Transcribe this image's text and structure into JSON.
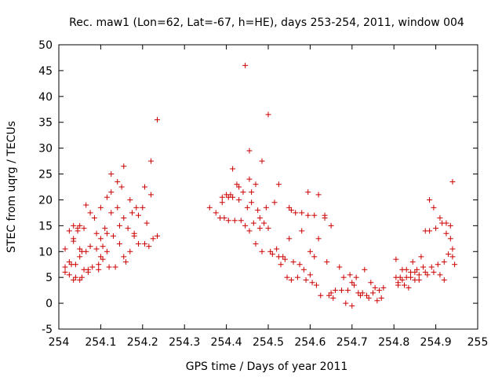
{
  "chart_data": {
    "type": "scatter",
    "title": "Rec. maw1 (Lon=62, Lat=-67, h=HE), days 253-254, 2011, window 004",
    "xlabel": "GPS time / Days of year 2011",
    "ylabel": "STEC from uqrg / TECUs",
    "xlim": [
      254,
      255
    ],
    "ylim": [
      -5,
      50
    ],
    "xticks": [
      "254",
      "254.1",
      "254.2",
      "254.3",
      "254.4",
      "254.5",
      "254.6",
      "254.7",
      "254.8",
      "254.9",
      "255"
    ],
    "yticks": [
      "-5",
      "0",
      "5",
      "10",
      "15",
      "20",
      "25",
      "30",
      "35",
      "40",
      "45",
      "50"
    ],
    "grid": false,
    "legend": "none",
    "marker": "plus",
    "color": "#cc0000",
    "points": [
      [
        254.015,
        10.5
      ],
      [
        254.015,
        7.0
      ],
      [
        254.015,
        6.0
      ],
      [
        254.025,
        14.0
      ],
      [
        254.025,
        8.0
      ],
      [
        254.025,
        5.5
      ],
      [
        254.03,
        7.5
      ],
      [
        254.035,
        15.0
      ],
      [
        254.035,
        12.5
      ],
      [
        254.035,
        12.0
      ],
      [
        254.035,
        4.5
      ],
      [
        254.04,
        7.5
      ],
      [
        254.04,
        5.0
      ],
      [
        254.045,
        14.5
      ],
      [
        254.045,
        14.0
      ],
      [
        254.05,
        15.0
      ],
      [
        254.05,
        10.5
      ],
      [
        254.05,
        9.0
      ],
      [
        254.05,
        4.5
      ],
      [
        254.055,
        10.0
      ],
      [
        254.055,
        5.0
      ],
      [
        254.06,
        14.5
      ],
      [
        254.06,
        6.5
      ],
      [
        254.065,
        19.0
      ],
      [
        254.065,
        10.0
      ],
      [
        254.07,
        6.5
      ],
      [
        254.07,
        6.0
      ],
      [
        254.075,
        17.5
      ],
      [
        254.075,
        11.0
      ],
      [
        254.08,
        7.0
      ],
      [
        254.085,
        16.5
      ],
      [
        254.09,
        13.5
      ],
      [
        254.09,
        10.5
      ],
      [
        254.095,
        7.5
      ],
      [
        254.095,
        6.5
      ],
      [
        254.1,
        18.5
      ],
      [
        254.1,
        12.5
      ],
      [
        254.1,
        9.0
      ],
      [
        254.105,
        11.0
      ],
      [
        254.105,
        8.5
      ],
      [
        254.11,
        14.5
      ],
      [
        254.115,
        20.5
      ],
      [
        254.115,
        13.5
      ],
      [
        254.115,
        10.0
      ],
      [
        254.12,
        7.0
      ],
      [
        254.125,
        25.0
      ],
      [
        254.125,
        21.5
      ],
      [
        254.125,
        17.5
      ],
      [
        254.13,
        13.0
      ],
      [
        254.135,
        7.0
      ],
      [
        254.14,
        23.5
      ],
      [
        254.14,
        18.5
      ],
      [
        254.145,
        15.0
      ],
      [
        254.145,
        11.5
      ],
      [
        254.15,
        22.5
      ],
      [
        254.155,
        26.5
      ],
      [
        254.155,
        16.5
      ],
      [
        254.155,
        9.0
      ],
      [
        254.16,
        8.0
      ],
      [
        254.165,
        14.5
      ],
      [
        254.17,
        20.0
      ],
      [
        254.17,
        10.0
      ],
      [
        254.175,
        17.5
      ],
      [
        254.18,
        13.5
      ],
      [
        254.18,
        13.0
      ],
      [
        254.185,
        18.5
      ],
      [
        254.19,
        17.0
      ],
      [
        254.19,
        11.5
      ],
      [
        254.2,
        18.5
      ],
      [
        254.205,
        22.5
      ],
      [
        254.205,
        11.5
      ],
      [
        254.21,
        15.5
      ],
      [
        254.215,
        11.0
      ],
      [
        254.22,
        27.5
      ],
      [
        254.22,
        21.0
      ],
      [
        254.225,
        12.5
      ],
      [
        254.235,
        35.5
      ],
      [
        254.235,
        13.0
      ],
      [
        254.36,
        18.5
      ],
      [
        254.375,
        17.5
      ],
      [
        254.385,
        16.5
      ],
      [
        254.39,
        20.5
      ],
      [
        254.39,
        19.5
      ],
      [
        254.395,
        16.5
      ],
      [
        254.4,
        21.0
      ],
      [
        254.405,
        20.5
      ],
      [
        254.405,
        16.0
      ],
      [
        254.41,
        21.0
      ],
      [
        254.415,
        26.0
      ],
      [
        254.415,
        20.5
      ],
      [
        254.42,
        16.0
      ],
      [
        254.425,
        23.0
      ],
      [
        254.43,
        22.5
      ],
      [
        254.43,
        20.0
      ],
      [
        254.435,
        16.0
      ],
      [
        254.44,
        21.5
      ],
      [
        254.445,
        46.0
      ],
      [
        254.445,
        15.0
      ],
      [
        254.45,
        18.5
      ],
      [
        254.455,
        29.5
      ],
      [
        254.455,
        24.0
      ],
      [
        254.455,
        14.0
      ],
      [
        254.46,
        21.5
      ],
      [
        254.46,
        19.5
      ],
      [
        254.465,
        15.5
      ],
      [
        254.47,
        23.0
      ],
      [
        254.47,
        11.5
      ],
      [
        254.475,
        18.0
      ],
      [
        254.48,
        16.5
      ],
      [
        254.48,
        14.5
      ],
      [
        254.485,
        27.5
      ],
      [
        254.485,
        10.0
      ],
      [
        254.49,
        15.5
      ],
      [
        254.495,
        18.5
      ],
      [
        254.5,
        36.5
      ],
      [
        254.5,
        14.5
      ],
      [
        254.505,
        10.0
      ],
      [
        254.51,
        9.5
      ],
      [
        254.515,
        19.5
      ],
      [
        254.52,
        10.5
      ],
      [
        254.525,
        23.0
      ],
      [
        254.525,
        9.0
      ],
      [
        254.53,
        7.5
      ],
      [
        254.535,
        9.0
      ],
      [
        254.54,
        8.5
      ],
      [
        254.545,
        5.0
      ],
      [
        254.55,
        18.5
      ],
      [
        254.55,
        12.5
      ],
      [
        254.555,
        18.0
      ],
      [
        254.555,
        4.5
      ],
      [
        254.56,
        8.0
      ],
      [
        254.565,
        17.5
      ],
      [
        254.57,
        5.0
      ],
      [
        254.575,
        7.5
      ],
      [
        254.58,
        17.5
      ],
      [
        254.58,
        14.0
      ],
      [
        254.585,
        6.5
      ],
      [
        254.59,
        4.5
      ],
      [
        254.595,
        21.5
      ],
      [
        254.595,
        17.0
      ],
      [
        254.6,
        10.0
      ],
      [
        254.6,
        5.5
      ],
      [
        254.605,
        4.0
      ],
      [
        254.61,
        17.0
      ],
      [
        254.61,
        9.0
      ],
      [
        254.615,
        3.5
      ],
      [
        254.62,
        21.0
      ],
      [
        254.62,
        12.5
      ],
      [
        254.625,
        1.5
      ],
      [
        254.635,
        17.0
      ],
      [
        254.635,
        16.5
      ],
      [
        254.64,
        8.0
      ],
      [
        254.645,
        1.5
      ],
      [
        254.65,
        15.0
      ],
      [
        254.65,
        2.0
      ],
      [
        254.655,
        1.0
      ],
      [
        254.66,
        2.5
      ],
      [
        254.67,
        7.0
      ],
      [
        254.675,
        2.5
      ],
      [
        254.68,
        5.0
      ],
      [
        254.685,
        0.0
      ],
      [
        254.69,
        2.5
      ],
      [
        254.695,
        5.5
      ],
      [
        254.7,
        4.0
      ],
      [
        254.7,
        -0.5
      ],
      [
        254.705,
        3.5
      ],
      [
        254.71,
        5.0
      ],
      [
        254.715,
        2.0
      ],
      [
        254.72,
        1.5
      ],
      [
        254.725,
        2.0
      ],
      [
        254.73,
        6.5
      ],
      [
        254.735,
        1.5
      ],
      [
        254.74,
        1.0
      ],
      [
        254.745,
        4.0
      ],
      [
        254.75,
        2.0
      ],
      [
        254.755,
        3.0
      ],
      [
        254.76,
        0.5
      ],
      [
        254.765,
        2.5
      ],
      [
        254.77,
        1.0
      ],
      [
        254.775,
        3.0
      ],
      [
        254.805,
        8.5
      ],
      [
        254.805,
        5.0
      ],
      [
        254.81,
        4.0
      ],
      [
        254.81,
        3.5
      ],
      [
        254.815,
        5.0
      ],
      [
        254.82,
        6.5
      ],
      [
        254.82,
        4.5
      ],
      [
        254.825,
        3.5
      ],
      [
        254.83,
        6.5
      ],
      [
        254.83,
        5.0
      ],
      [
        254.835,
        3.0
      ],
      [
        254.84,
        6.0
      ],
      [
        254.84,
        5.0
      ],
      [
        254.845,
        8.0
      ],
      [
        254.85,
        6.0
      ],
      [
        254.85,
        4.5
      ],
      [
        254.855,
        6.5
      ],
      [
        254.86,
        5.5
      ],
      [
        254.86,
        4.5
      ],
      [
        254.865,
        9.0
      ],
      [
        254.87,
        7.0
      ],
      [
        254.875,
        14.0
      ],
      [
        254.875,
        6.0
      ],
      [
        254.88,
        5.5
      ],
      [
        254.885,
        14.0
      ],
      [
        254.885,
        20.0
      ],
      [
        254.89,
        7.0
      ],
      [
        254.895,
        18.5
      ],
      [
        254.895,
        6.0
      ],
      [
        254.9,
        14.5
      ],
      [
        254.905,
        7.5
      ],
      [
        254.91,
        16.5
      ],
      [
        254.91,
        5.5
      ],
      [
        254.915,
        15.5
      ],
      [
        254.92,
        8.0
      ],
      [
        254.92,
        4.5
      ],
      [
        254.925,
        13.5
      ],
      [
        254.925,
        15.5
      ],
      [
        254.93,
        9.5
      ],
      [
        254.935,
        12.5
      ],
      [
        254.935,
        15.0
      ],
      [
        254.94,
        23.5
      ],
      [
        254.94,
        10.5
      ],
      [
        254.94,
        9.0
      ],
      [
        254.945,
        7.5
      ]
    ]
  }
}
